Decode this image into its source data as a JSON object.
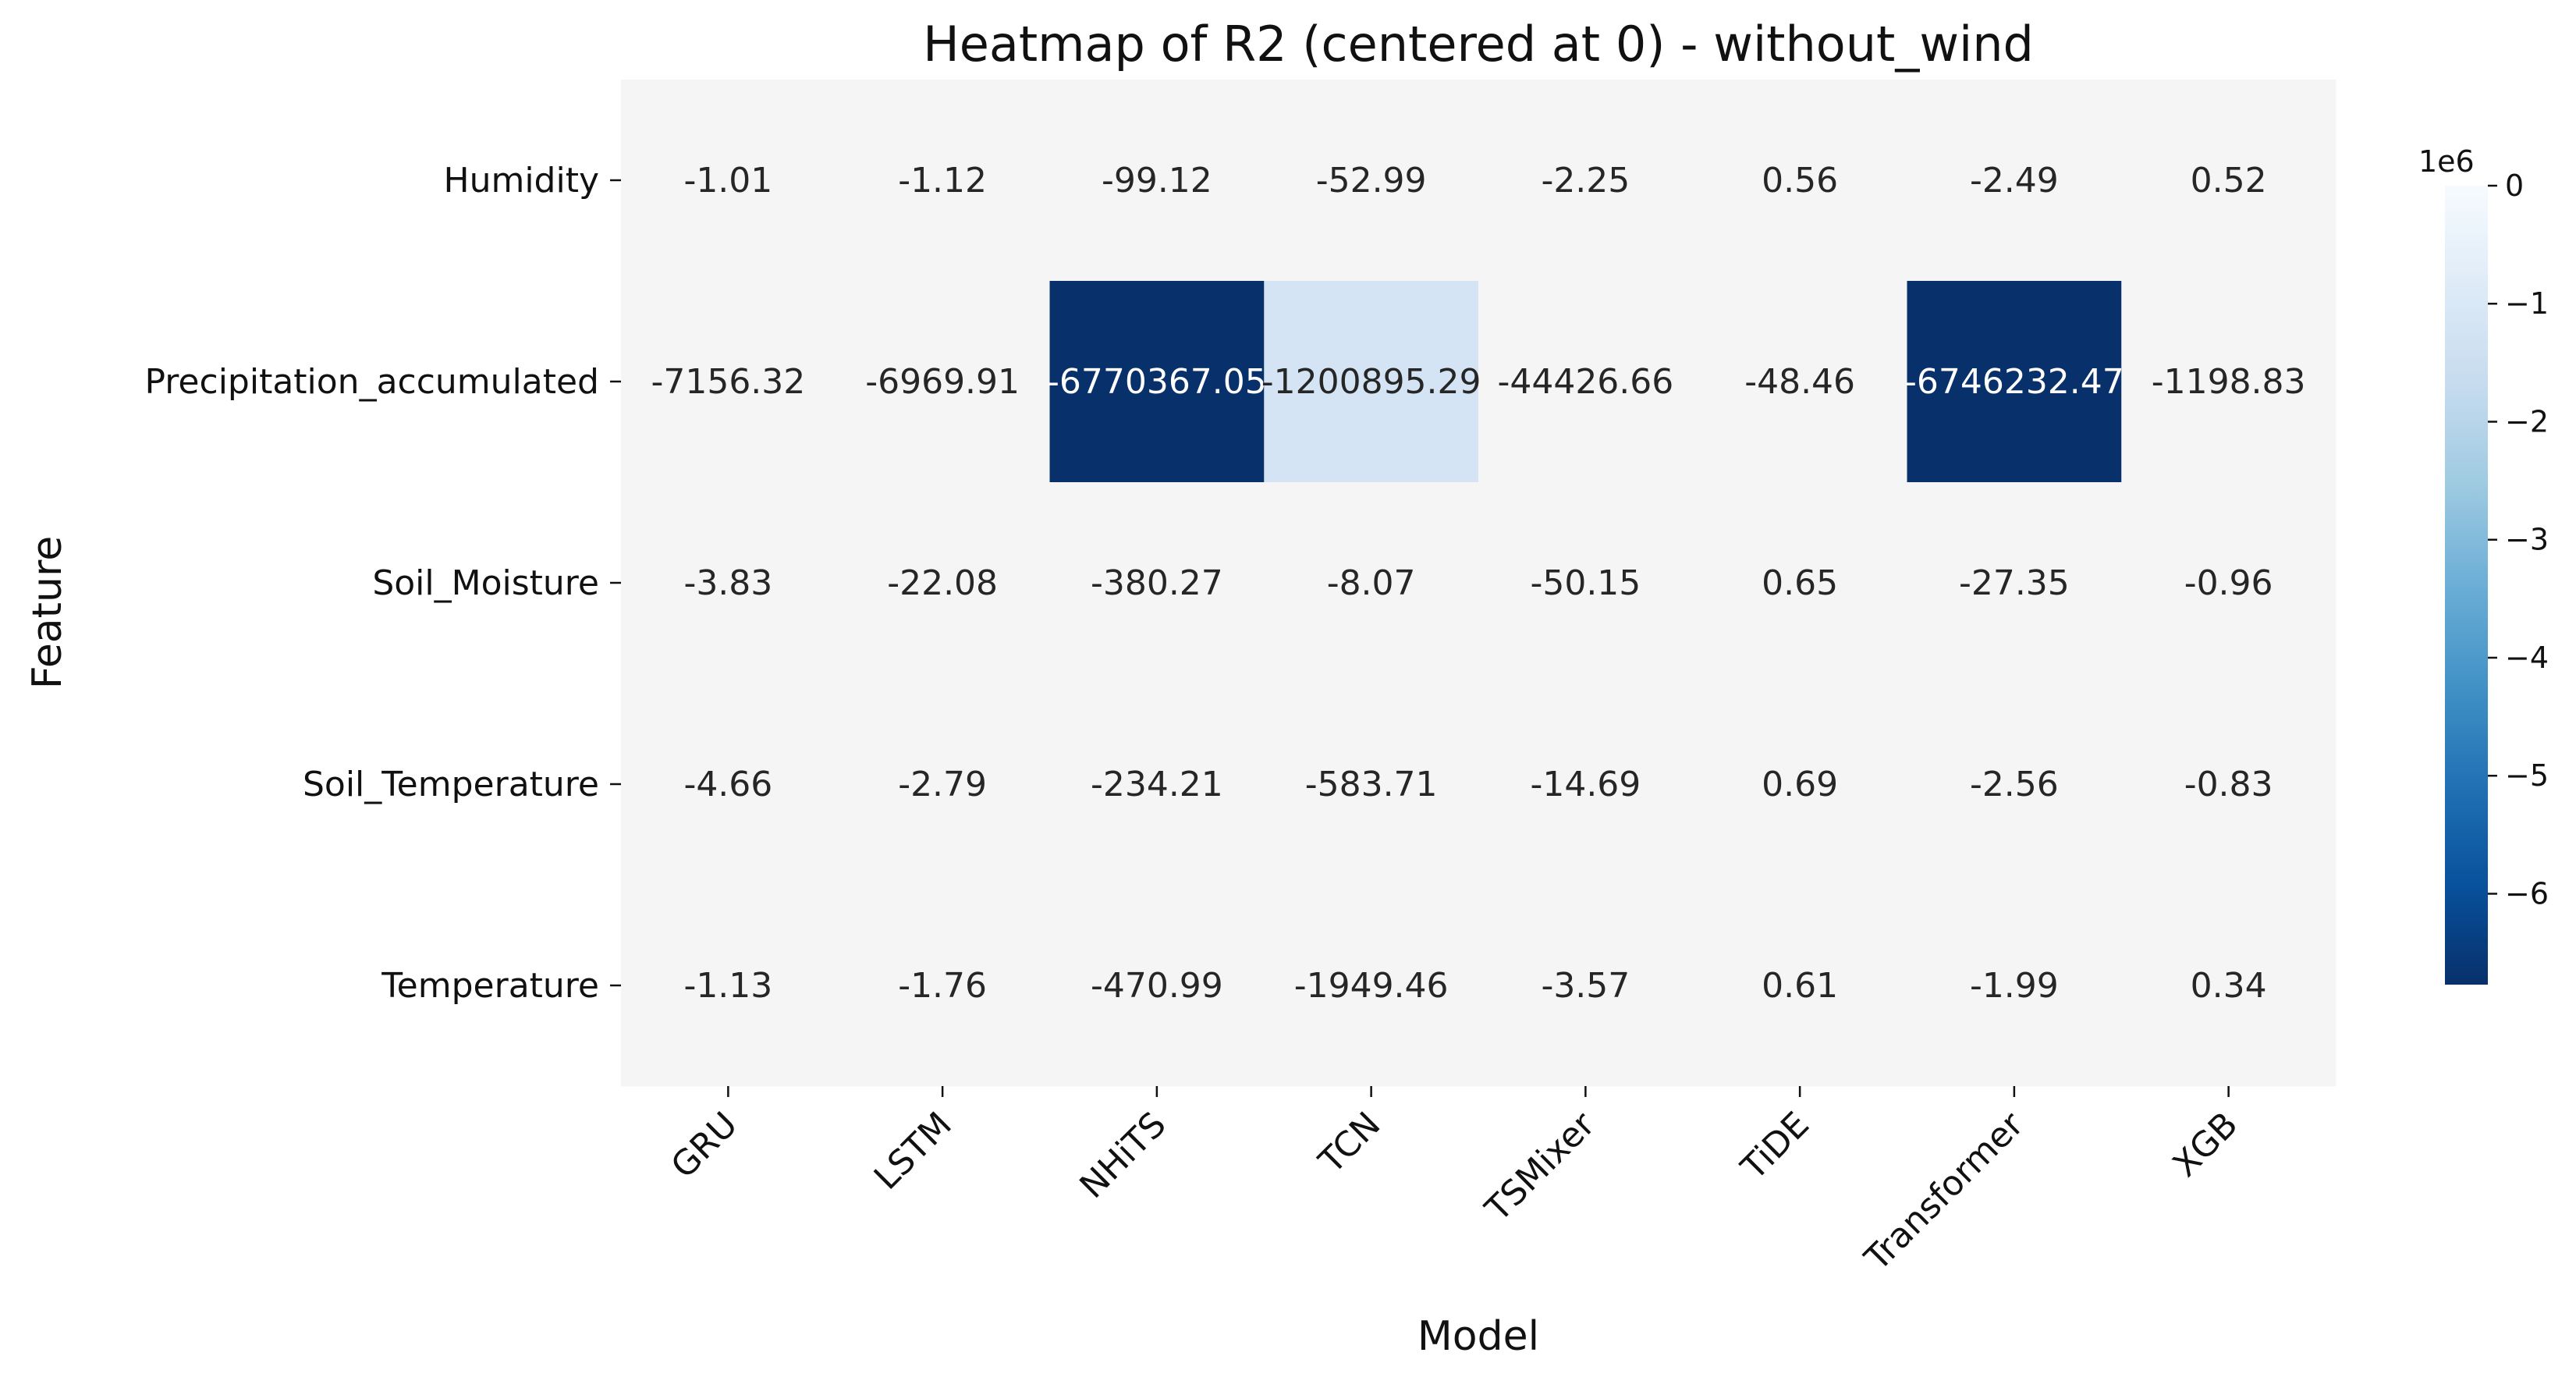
{
  "chart_data": {
    "type": "heatmap",
    "title": "Heatmap of R2 (centered at 0) - without_wind",
    "xlabel": "Model",
    "ylabel": "Feature",
    "columns": [
      "GRU",
      "LSTM",
      "NHiTS",
      "TCN",
      "TSMixer",
      "TiDE",
      "Transformer",
      "XGB"
    ],
    "rows": [
      "Humidity",
      "Precipitation_accumulated",
      "Soil_Moisture",
      "Soil_Temperature",
      "Temperature"
    ],
    "values": [
      [
        -1.01,
        -1.12,
        -99.12,
        -52.99,
        -2.25,
        0.56,
        -2.49,
        0.52
      ],
      [
        -7156.32,
        -6969.91,
        -6770367.05,
        -1200895.29,
        -44426.66,
        -48.46,
        -6746232.47,
        -1198.83
      ],
      [
        -3.83,
        -22.08,
        -380.27,
        -8.07,
        -50.15,
        0.65,
        -27.35,
        -0.96
      ],
      [
        -4.66,
        -2.79,
        -234.21,
        -583.71,
        -14.69,
        0.69,
        -2.56,
        -0.83
      ],
      [
        -1.13,
        -1.76,
        -470.99,
        -1949.46,
        -3.57,
        0.61,
        -1.99,
        0.34
      ]
    ],
    "cell_labels": [
      [
        "-1.01",
        "-1.12",
        "-99.12",
        "-52.99",
        "-2.25",
        "0.56",
        "-2.49",
        "0.52"
      ],
      [
        "-7156.32",
        "-6969.91",
        "-6770367.05",
        "-1200895.29",
        "-44426.66",
        "-48.46",
        "-6746232.47",
        "-1198.83"
      ],
      [
        "-3.83",
        "-22.08",
        "-380.27",
        "-8.07",
        "-50.15",
        "0.65",
        "-27.35",
        "-0.96"
      ],
      [
        "-4.66",
        "-2.79",
        "-234.21",
        "-583.71",
        "-14.69",
        "0.69",
        "-2.56",
        "-0.83"
      ],
      [
        "-1.13",
        "-1.76",
        "-470.99",
        "-1949.46",
        "-3.57",
        "0.61",
        "-1.99",
        "0.34"
      ]
    ],
    "colorbar": {
      "colormap": "Blues_r",
      "center": 0,
      "vmin": -6770367.05,
      "vmax": 0,
      "ticks": [
        0,
        -1000000,
        -2000000,
        -3000000,
        -4000000,
        -5000000,
        -6000000
      ],
      "tick_labels": [
        "0",
        "−1",
        "−2",
        "−3",
        "−4",
        "−5",
        "−6"
      ],
      "offset_label": "1e6"
    },
    "colors": {
      "light": "#f5f5f5",
      "dark": "#08306b",
      "text_dark": "#262626",
      "text_light": "#ffffff"
    }
  }
}
